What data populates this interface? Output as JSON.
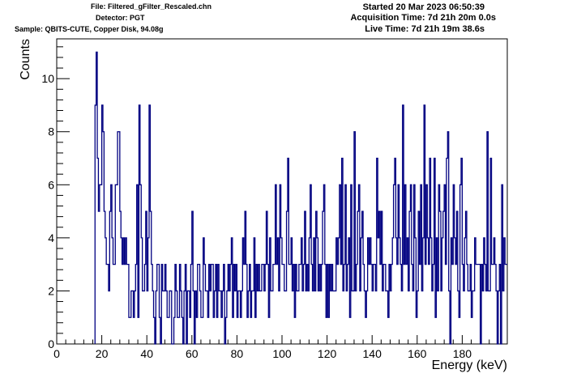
{
  "header": {
    "file": "File: Filtered_gFilter_Rescaled.chn",
    "detector": "Detector: PGT",
    "sample": "Sample: QBITS-CUTE, Copper Disk, 94.08g",
    "started": "Started 20 Mar 2023 06:50:39",
    "acquisition": "Acquisition Time: 7d 21h 20m 0.0s",
    "live": "Live Time: 7d 21h 19m 38.6s"
  },
  "colors": {
    "series": "#000080",
    "frame": "#000000",
    "background": "#ffffff"
  },
  "chart_data": {
    "type": "histogram",
    "title": "",
    "xlabel": "Energy (keV)",
    "ylabel": "Counts",
    "xlim": [
      0,
      200
    ],
    "ylim": [
      0,
      11.5
    ],
    "grid": false,
    "x_ticks": [
      0,
      20,
      40,
      60,
      80,
      100,
      120,
      140,
      160,
      180
    ],
    "y_ticks": [
      0,
      2,
      4,
      6,
      8,
      10
    ],
    "bin_start_keV": 17.0,
    "bin_width_keV": 0.5,
    "series": [
      {
        "values": [
          9,
          11,
          7,
          5,
          6,
          6,
          9,
          8,
          5,
          4,
          3,
          3,
          2,
          5,
          6,
          4,
          3,
          3,
          6,
          6,
          8,
          8,
          5,
          4,
          3,
          4,
          3,
          4,
          3,
          3,
          1,
          1,
          2,
          2,
          1,
          2,
          3,
          6,
          1,
          9,
          6,
          4,
          2,
          2,
          3,
          5,
          2,
          4,
          9,
          5,
          3,
          2,
          1,
          0,
          2,
          3,
          3,
          1,
          0,
          3,
          2,
          2,
          3,
          2,
          1,
          1,
          2,
          2,
          0,
          0,
          1,
          3,
          2,
          1,
          1,
          3,
          2,
          1,
          0,
          2,
          3,
          0,
          2,
          2,
          1,
          3,
          5,
          2,
          0,
          2,
          1,
          3,
          3,
          2,
          1,
          1,
          4,
          3,
          2,
          2,
          1,
          3,
          2,
          3,
          3,
          1,
          2,
          3,
          1,
          3,
          2,
          2,
          1,
          2,
          3,
          0,
          1,
          2,
          3,
          2,
          3,
          4,
          1,
          3,
          2,
          3,
          1,
          2,
          2,
          1,
          2,
          4,
          3,
          5,
          3,
          1,
          2,
          3,
          1,
          2,
          2,
          4,
          1,
          3,
          2,
          3,
          2,
          2,
          3,
          3,
          2,
          3,
          5,
          3,
          1,
          4,
          2,
          2,
          3,
          3,
          6,
          3,
          4,
          2,
          6,
          4,
          3,
          3,
          2,
          2,
          5,
          7,
          3,
          3,
          4,
          2,
          3,
          1,
          3,
          2,
          2,
          3,
          3,
          4,
          2,
          3,
          5,
          2,
          3,
          2,
          4,
          6,
          3,
          2,
          4,
          2,
          5,
          4,
          2,
          3,
          2,
          3,
          5,
          6,
          3,
          1,
          3,
          1,
          3,
          2,
          3,
          2,
          2,
          2,
          4,
          3,
          4,
          6,
          3,
          7,
          2,
          3,
          6,
          2,
          3,
          4,
          1,
          6,
          2,
          2,
          8,
          2,
          3,
          5,
          6,
          2,
          4,
          5,
          3,
          2,
          1,
          2,
          4,
          3,
          4,
          3,
          2,
          3,
          3,
          2,
          7,
          4,
          5,
          3,
          5,
          2,
          3,
          3,
          2,
          2,
          1,
          3,
          2,
          3,
          4,
          6,
          7,
          4,
          3,
          6,
          4,
          3,
          2,
          9,
          3,
          6,
          3,
          4,
          2,
          5,
          6,
          3,
          2,
          6,
          4,
          1,
          2,
          5,
          3,
          6,
          2,
          4,
          9,
          3,
          6,
          4,
          3,
          7,
          4,
          2,
          3,
          7,
          1,
          4,
          2,
          6,
          5,
          2,
          4,
          5,
          6,
          3,
          7,
          8,
          2,
          0,
          4,
          3,
          6,
          4,
          3,
          5,
          2,
          1,
          6,
          7,
          3,
          2,
          4,
          5,
          3,
          2,
          2,
          3,
          1,
          2,
          2,
          4,
          3,
          3,
          3,
          3,
          0,
          3,
          2,
          4,
          3,
          2,
          8,
          2,
          2,
          7,
          3,
          3,
          4,
          3,
          2,
          0,
          2,
          3,
          0,
          6,
          2,
          4,
          3,
          3
        ]
      }
    ]
  }
}
